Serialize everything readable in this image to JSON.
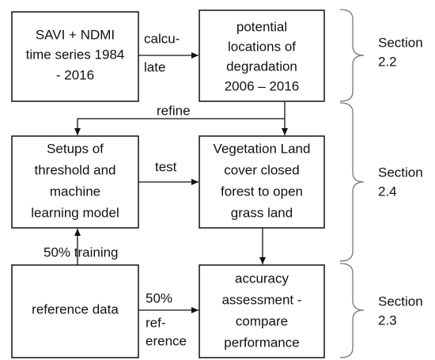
{
  "nodes": [
    {
      "lines": [
        "SAVI + NDMI",
        "time series 1984",
        "- 2016"
      ]
    },
    {
      "lines": [
        "potential",
        "locations of",
        "degradation",
        "2006 – 2016"
      ]
    },
    {
      "lines": [
        "Setups of",
        "threshold and",
        "machine",
        "learning model"
      ]
    },
    {
      "lines": [
        "Vegetation Land",
        "cover closed",
        "forest to open",
        "grass land"
      ]
    },
    {
      "lines": [
        "reference data"
      ]
    },
    {
      "lines": [
        "accuracy",
        "assessment -",
        "compare",
        "performance"
      ]
    }
  ],
  "edge_labels": [
    {
      "lines": [
        "calcu-",
        "late"
      ]
    },
    {
      "lines": [
        "refine"
      ]
    },
    {
      "lines": [
        "test"
      ]
    },
    {
      "lines": [
        "50% training"
      ]
    },
    {
      "lines": [
        "50%",
        "ref-",
        "erence"
      ]
    }
  ],
  "sections": [
    {
      "lines": [
        "Section",
        "2.2"
      ]
    },
    {
      "lines": [
        "Section",
        "2.4"
      ]
    },
    {
      "lines": [
        "Section",
        "2.3"
      ]
    }
  ]
}
